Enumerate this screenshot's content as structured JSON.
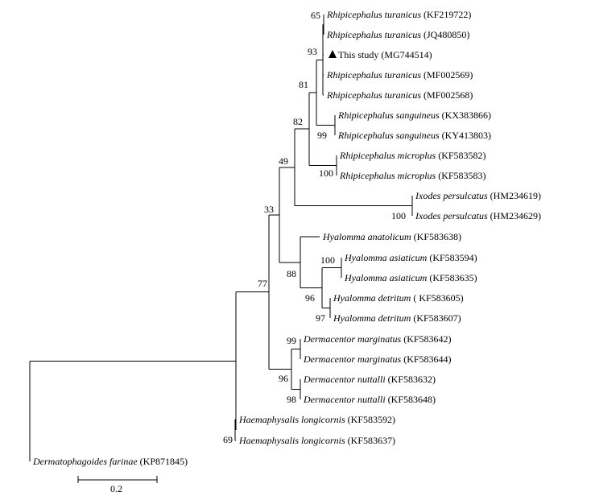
{
  "taxa": [
    {
      "species": "Rhipicephalus turanicus",
      "accession": "(KF219722)"
    },
    {
      "species": "Rhipicephalus turanicus",
      "accession": "(JQ480850)"
    },
    {
      "species": "",
      "prefix": "This study",
      "accession": "(MG744514)",
      "marker": "triangle"
    },
    {
      "species": "Rhipicephalus turanicus",
      "accession": "(MF002569)"
    },
    {
      "species": "Rhipicephalus turanicus",
      "accession": "(MF002568)"
    },
    {
      "species": "Rhipicephalus sanguineus",
      "accession": "(KX383866)"
    },
    {
      "species": "Rhipicephalus sanguineus",
      "accession": "(KY413803)"
    },
    {
      "species": "Rhipicephalus microplus",
      "accession": "(KF583582)"
    },
    {
      "species": "Rhipicephalus microplus",
      "accession": "(KF583583)"
    },
    {
      "species": "Ixodes persulcatus",
      "accession": "(HM234619)"
    },
    {
      "species": "Ixodes persulcatus",
      "accession": "(HM234629)"
    },
    {
      "species": "Hyalomma anatolicum",
      "accession": "(KF583638)"
    },
    {
      "species": "Hyalomma asiaticum",
      "accession": "(KF583594)"
    },
    {
      "species": "Hyalomma asiaticum",
      "accession": "(KF583635)"
    },
    {
      "species": "Hyalomma detritum",
      "accession": "( KF583605)"
    },
    {
      "species": "Hyalomma detritum",
      "accession": "(KF583607)"
    },
    {
      "species": "Dermacentor marginatus",
      "accession": "(KF583642)"
    },
    {
      "species": "Dermacentor marginatus",
      "accession": "(KF583644)"
    },
    {
      "species": "Dermacentor nuttalli",
      "accession": "(KF583632)"
    },
    {
      "species": "Dermacentor nuttalli",
      "accession": "(KF583648)"
    },
    {
      "species": "Haemaphysalis longicornis",
      "accession": "(KF583592)"
    },
    {
      "species": "Haemaphysalis longicornis",
      "accession": "(KF583637)"
    },
    {
      "species": "Dermatophagoides farinae",
      "accession": "(KP871845)"
    }
  ],
  "support_values": [
    "65",
    "93",
    "81",
    "99",
    "82",
    "100",
    "49",
    "100",
    "33",
    "100",
    "88",
    "96",
    "97",
    "77",
    "99",
    "96",
    "98",
    "69"
  ],
  "scale_bar": {
    "label": "0.2"
  }
}
